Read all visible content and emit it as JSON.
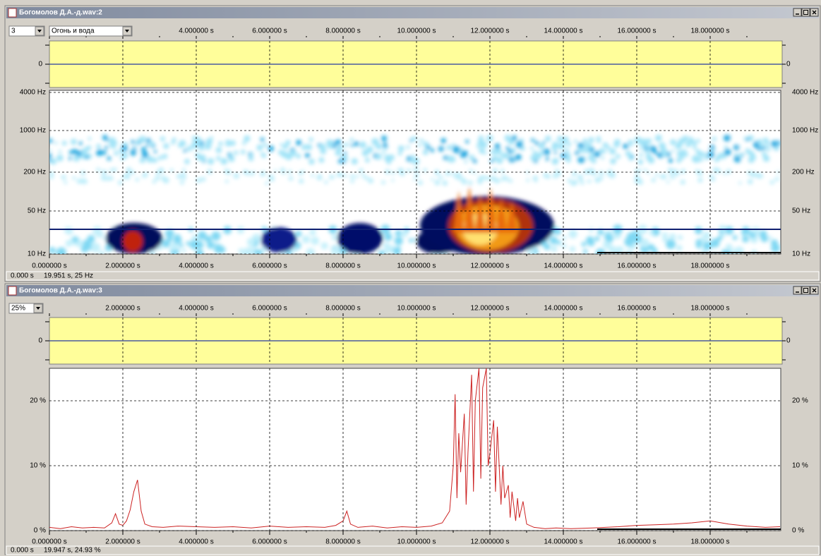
{
  "windows": [
    {
      "title": "Богомолов Д.А.-д.wav:2",
      "selectors": [
        "3",
        "Огонь и вода"
      ],
      "top_ticks": [
        "4.000000 s",
        "6.000000 s",
        "8.000000 s",
        "10.000000 s",
        "12.000000 s",
        "14.000000 s",
        "16.000000 s",
        "18.000000 s"
      ],
      "wave_zero_label": "0",
      "y_labels": [
        "4000 Hz",
        "1000 Hz",
        "200 Hz",
        "50 Hz",
        "10 Hz"
      ],
      "bottom_ticks": [
        "0.000000 s",
        "2.000000 s",
        "4.000000 s",
        "6.000000 s",
        "8.000000 s",
        "10.000000 s",
        "12.000000 s",
        "14.000000 s",
        "16.000000 s",
        "18.000000 s"
      ],
      "status": [
        "0.000 s",
        "19.951 s, 25 Hz"
      ]
    },
    {
      "title": "Богомолов Д.А.-д.wav:3",
      "selectors": [
        "25%"
      ],
      "top_ticks": [
        "2.000000 s",
        "4.000000 s",
        "6.000000 s",
        "8.000000 s",
        "10.000000 s",
        "12.000000 s",
        "14.000000 s",
        "16.000000 s",
        "18.000000 s"
      ],
      "wave_zero_label": "0",
      "chart": {
        "type": "line",
        "color": "#cc2222",
        "xlim": [
          0,
          19.92
        ],
        "ylim": [
          0,
          25
        ],
        "yticks": [
          {
            "value": 0,
            "label": "0 %"
          },
          {
            "value": 10,
            "label": "10 %"
          },
          {
            "value": 20,
            "label": "20 %"
          }
        ],
        "x": [
          0,
          0.3,
          0.6,
          0.9,
          1.2,
          1.5,
          1.7,
          1.8,
          1.9,
          2.0,
          2.1,
          2.2,
          2.3,
          2.4,
          2.5,
          2.6,
          2.8,
          3.1,
          3.5,
          4.0,
          4.5,
          5.0,
          5.5,
          6.0,
          6.5,
          7.0,
          7.5,
          7.8,
          8.0,
          8.1,
          8.2,
          8.4,
          8.8,
          9.2,
          9.6,
          10.0,
          10.4,
          10.7,
          10.9,
          11.0,
          11.05,
          11.1,
          11.15,
          11.2,
          11.3,
          11.35,
          11.4,
          11.5,
          11.55,
          11.6,
          11.7,
          11.75,
          11.8,
          11.9,
          11.95,
          12.0,
          12.1,
          12.15,
          12.2,
          12.3,
          12.35,
          12.4,
          12.5,
          12.55,
          12.6,
          12.7,
          12.75,
          12.8,
          12.9,
          13.0,
          13.2,
          13.5,
          13.8,
          14.2,
          14.8,
          15.5,
          16.0,
          16.5,
          17.0,
          17.5,
          18.0,
          18.5,
          19.0,
          19.5,
          19.9
        ],
        "values": [
          0.5,
          0.3,
          0.6,
          0.4,
          0.5,
          0.4,
          1.2,
          2.6,
          1.0,
          0.8,
          1.5,
          3.2,
          6.0,
          7.8,
          3.0,
          1.0,
          0.6,
          0.5,
          0.7,
          0.6,
          0.5,
          0.6,
          0.4,
          0.7,
          0.5,
          0.6,
          0.5,
          0.8,
          1.5,
          3.0,
          1.0,
          0.5,
          0.7,
          0.4,
          0.6,
          0.5,
          0.7,
          1.2,
          3.0,
          10.0,
          21.0,
          5.0,
          15.0,
          9.0,
          18.0,
          4.0,
          12.0,
          24.0,
          6.0,
          20.0,
          25.0,
          8.0,
          22.0,
          25.0,
          10.0,
          12.0,
          17.0,
          6.0,
          16.0,
          4.0,
          10.0,
          5.0,
          7.0,
          2.0,
          6.0,
          1.5,
          5.0,
          2.0,
          4.5,
          1.0,
          0.5,
          0.3,
          0.4,
          0.3,
          0.4,
          0.6,
          0.8,
          0.9,
          1.0,
          1.2,
          1.5,
          1.0,
          0.7,
          0.5,
          0.6
        ]
      },
      "bottom_ticks": [
        "0.000000 s",
        "2.000000 s",
        "4.000000 s",
        "6.000000 s",
        "8.000000 s",
        "10.000000 s",
        "12.000000 s",
        "14.000000 s",
        "16.000000 s",
        "18.000000 s"
      ],
      "status": [
        "0.000 s",
        "19.947 s, 24.93 %"
      ]
    }
  ]
}
